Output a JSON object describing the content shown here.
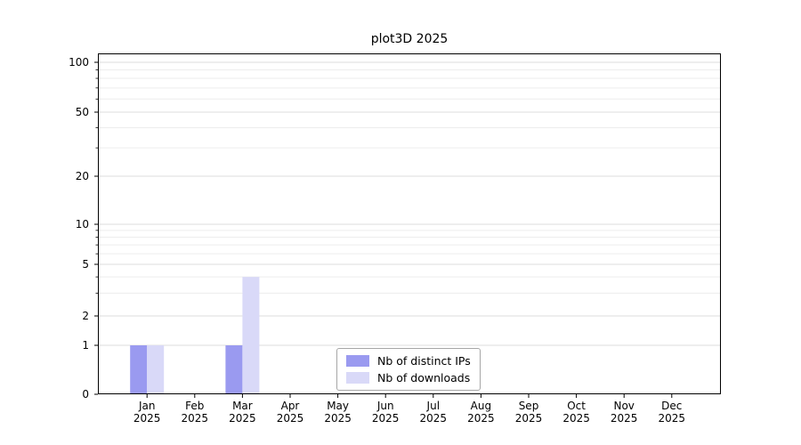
{
  "page": {
    "background": "#ffffff"
  },
  "chart_data": {
    "type": "bar",
    "title": "plot3D 2025",
    "categories": [
      "Jan 2025",
      "Feb 2025",
      "Mar 2025",
      "Apr 2025",
      "May 2025",
      "Jun 2025",
      "Jul 2025",
      "Aug 2025",
      "Sep 2025",
      "Oct 2025",
      "Nov 2025",
      "Dec 2025"
    ],
    "series": [
      {
        "name": "Nb of distinct IPs",
        "color": "#9a9af0",
        "values": [
          1,
          0,
          1,
          0,
          0,
          0,
          0,
          0,
          0,
          0,
          0,
          0
        ]
      },
      {
        "name": "Nb of downloads",
        "color": "#d9d9f8",
        "values": [
          1,
          0,
          4,
          0,
          0,
          0,
          0,
          0,
          0,
          0,
          0,
          0
        ]
      }
    ],
    "y_ticks": [
      0,
      1,
      2,
      5,
      10,
      20,
      50,
      100
    ],
    "y_minor_ticks": [
      3,
      4,
      6,
      7,
      8,
      9,
      30,
      40,
      60,
      70,
      80,
      90
    ],
    "scale": "symlog",
    "ylim": [
      0,
      100
    ],
    "xlabel": "",
    "ylabel": "",
    "grid": "horizontal",
    "legend_position": "lower-center-inside"
  }
}
